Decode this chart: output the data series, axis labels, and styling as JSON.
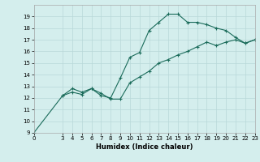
{
  "line1_x": [
    0,
    3,
    4,
    5,
    6,
    7,
    8,
    9,
    10,
    11,
    12,
    13,
    14,
    15,
    16,
    17,
    18,
    19,
    20,
    21,
    22,
    23
  ],
  "line1_y": [
    9.0,
    12.2,
    12.5,
    12.3,
    12.8,
    12.4,
    11.9,
    11.9,
    13.3,
    13.8,
    14.3,
    15.0,
    15.3,
    15.7,
    16.0,
    16.4,
    16.8,
    16.5,
    16.8,
    17.0,
    16.7,
    17.0
  ],
  "line2_x": [
    3,
    4,
    5,
    6,
    7,
    8,
    9,
    10,
    11,
    12,
    13,
    14,
    15,
    16,
    17,
    18,
    19,
    20,
    21,
    22,
    23
  ],
  "line2_y": [
    12.2,
    12.8,
    12.5,
    12.8,
    12.2,
    12.0,
    13.7,
    15.5,
    15.9,
    17.8,
    18.5,
    19.2,
    19.2,
    18.5,
    18.5,
    18.3,
    18.0,
    17.8,
    17.2,
    16.7,
    17.0
  ],
  "line_color": "#1a6b5a",
  "bg_color": "#d4eeed",
  "grid_color": "#b8d8d8",
  "xlabel": "Humidex (Indice chaleur)",
  "xlim": [
    0,
    23
  ],
  "ylim": [
    9,
    20
  ],
  "yticks": [
    9,
    10,
    11,
    12,
    13,
    14,
    15,
    16,
    17,
    18,
    19
  ],
  "xticks": [
    0,
    3,
    4,
    5,
    6,
    7,
    8,
    9,
    10,
    11,
    12,
    13,
    14,
    15,
    16,
    17,
    18,
    19,
    20,
    21,
    22,
    23
  ],
  "marker": "+",
  "marker_size": 3,
  "marker_edge_width": 0.8,
  "line_width": 0.8,
  "tick_fontsize": 5.0,
  "xlabel_fontsize": 6.0
}
